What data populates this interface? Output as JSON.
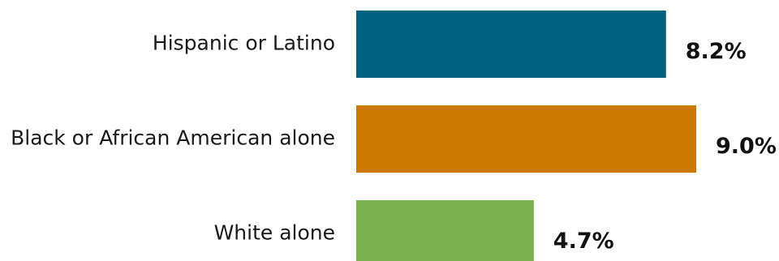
{
  "chart_data": {
    "type": "bar",
    "orientation": "horizontal",
    "categories": [
      "Hispanic or Latino",
      "Black or African American alone",
      "White alone"
    ],
    "values": [
      8.2,
      9.0,
      4.7
    ],
    "value_labels": [
      "8.2%",
      "9.0%",
      "4.7%"
    ],
    "colors": [
      "#00617F",
      "#CC7700",
      "#7AAF4E"
    ],
    "xlim": [
      0,
      9.0
    ],
    "grid": false,
    "legend": false
  }
}
